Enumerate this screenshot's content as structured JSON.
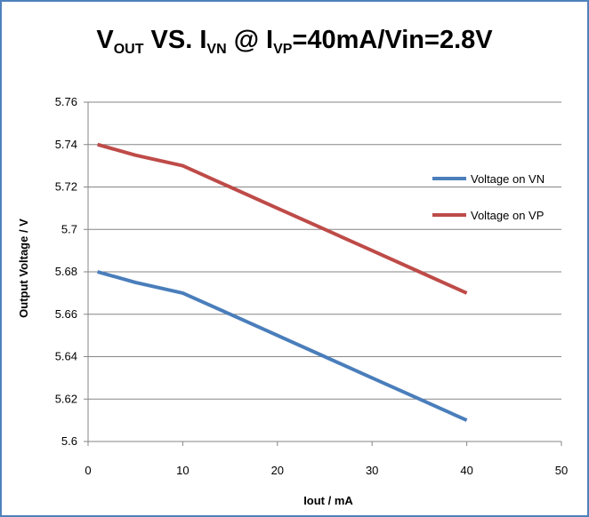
{
  "chart_data": {
    "type": "line",
    "title_segments": [
      {
        "text": "V",
        "role": "base"
      },
      {
        "text": "OUT",
        "role": "sub"
      },
      {
        "text": " VS. I",
        "role": "base"
      },
      {
        "text": "VN",
        "role": "sub"
      },
      {
        "text": " @ I",
        "role": "base"
      },
      {
        "text": "VP",
        "role": "sub"
      },
      {
        "text": "=40mA/Vin=2.8V",
        "role": "base"
      }
    ],
    "xlabel": "Iout / mA",
    "ylabel": "Output Voltage / V",
    "xlim": [
      0,
      50
    ],
    "ylim": [
      5.6,
      5.76
    ],
    "x_ticks": [
      "0",
      "10",
      "20",
      "30",
      "40",
      "50"
    ],
    "y_ticks": [
      "5.6",
      "5.62",
      "5.64",
      "5.66",
      "5.68",
      "5.7",
      "5.72",
      "5.74",
      "5.76"
    ],
    "grid": "horizontal",
    "legend_position": "right",
    "series": [
      {
        "name": "Voltage on VN",
        "color": "#4a7ebb",
        "points": [
          [
            1,
            5.68
          ],
          [
            5,
            5.675
          ],
          [
            10,
            5.67
          ],
          [
            15,
            5.66
          ],
          [
            20,
            5.65
          ],
          [
            25,
            5.64
          ],
          [
            30,
            5.63
          ],
          [
            35,
            5.62
          ],
          [
            40,
            5.61
          ]
        ]
      },
      {
        "name": "Voltage on VP",
        "color": "#be4b48",
        "points": [
          [
            1,
            5.74
          ],
          [
            5,
            5.735
          ],
          [
            10,
            5.73
          ],
          [
            15,
            5.72
          ],
          [
            20,
            5.71
          ],
          [
            25,
            5.7
          ],
          [
            30,
            5.69
          ],
          [
            35,
            5.68
          ],
          [
            40,
            5.67
          ]
        ]
      }
    ]
  }
}
